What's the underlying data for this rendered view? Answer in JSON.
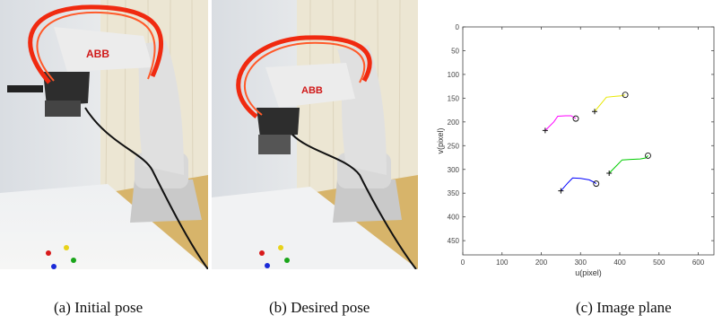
{
  "captions": {
    "a": "(a) Initial pose",
    "b": "(b) Desired pose",
    "c": "(c) Image plane"
  },
  "photos": {
    "robot_brand": "ABB"
  },
  "chart_data": {
    "type": "line",
    "title": "",
    "xlabel": "u(pixel)",
    "ylabel": "v(pixel)",
    "xlim": [
      0,
      640
    ],
    "ylim": [
      0,
      480
    ],
    "y_inverted": true,
    "x_ticks": [
      "0",
      "100",
      "200",
      "300",
      "400",
      "500",
      "600"
    ],
    "y_ticks": [
      "0",
      "50",
      "100",
      "150",
      "200",
      "250",
      "300",
      "350",
      "400",
      "450"
    ],
    "grid": false,
    "series": [
      {
        "color": "#ff00ff",
        "start": [
          210,
          218
        ],
        "end": [
          288,
          193
        ],
        "path": [
          [
            210,
            218
          ],
          [
            232,
            200
          ],
          [
            242,
            188
          ],
          [
            262,
            187
          ],
          [
            276,
            187
          ],
          [
            288,
            193
          ]
        ]
      },
      {
        "color": "#e8e800",
        "start": [
          336,
          178
        ],
        "end": [
          414,
          143
        ],
        "path": [
          [
            336,
            178
          ],
          [
            354,
            160
          ],
          [
            366,
            148
          ],
          [
            390,
            146
          ],
          [
            404,
            145
          ],
          [
            414,
            143
          ]
        ]
      },
      {
        "color": "#0000ff",
        "start": [
          250,
          345
        ],
        "end": [
          340,
          330
        ],
        "path": [
          [
            250,
            345
          ],
          [
            268,
            328
          ],
          [
            280,
            318
          ],
          [
            300,
            319
          ],
          [
            322,
            322
          ],
          [
            332,
            326
          ],
          [
            340,
            330
          ]
        ]
      },
      {
        "color": "#00cc00",
        "start": [
          373,
          308
        ],
        "end": [
          472,
          271
        ],
        "path": [
          [
            373,
            308
          ],
          [
            392,
            292
          ],
          [
            406,
            280
          ],
          [
            428,
            279
          ],
          [
            452,
            278
          ],
          [
            466,
            276
          ],
          [
            472,
            271
          ]
        ]
      }
    ],
    "markers": {
      "start": "plus",
      "end": "circle"
    }
  }
}
